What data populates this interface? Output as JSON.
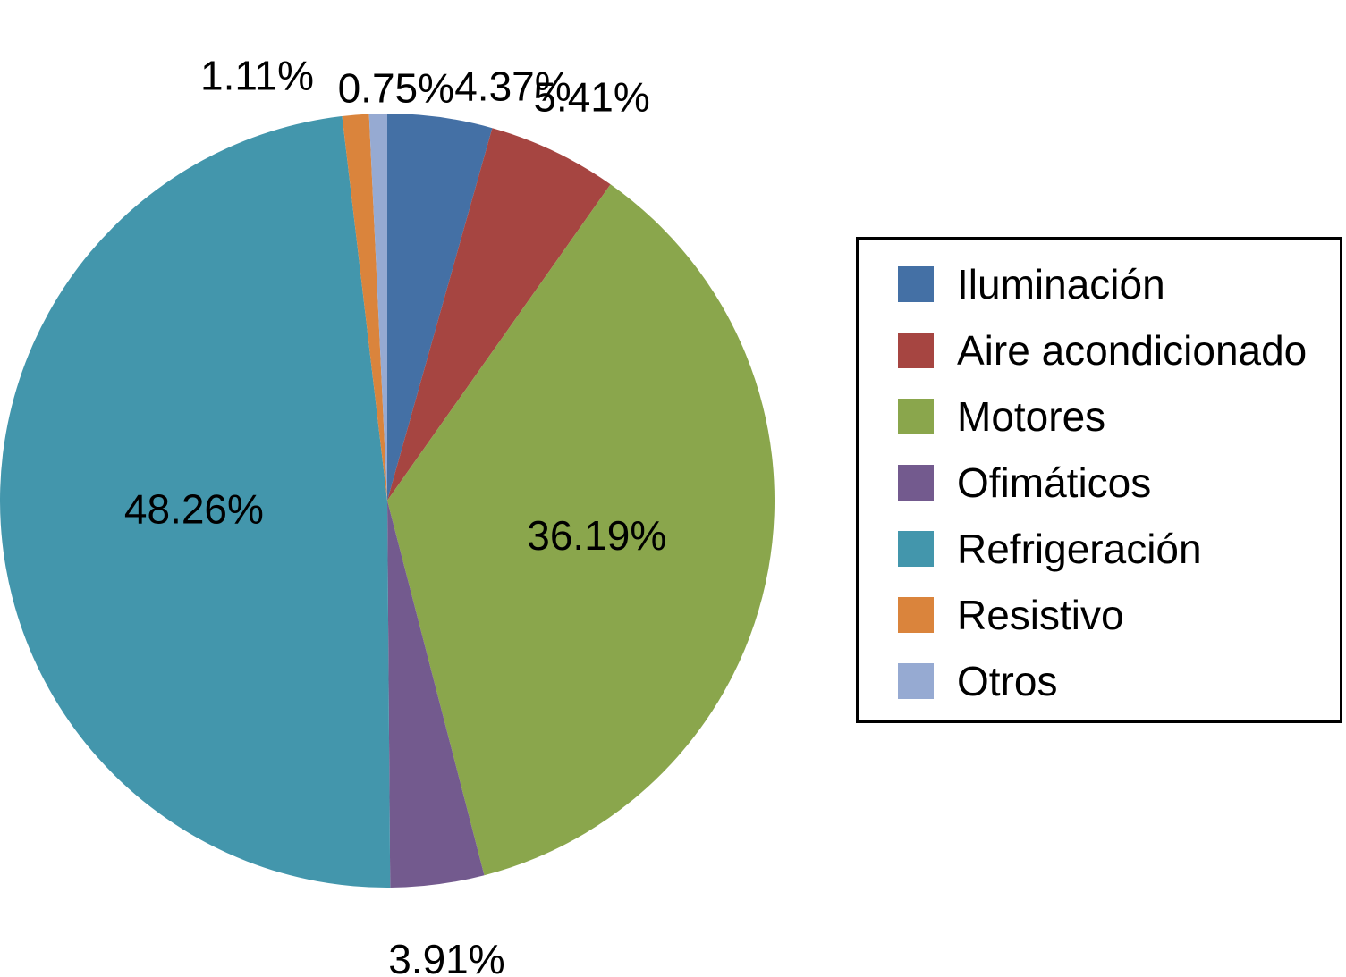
{
  "chart_data": {
    "type": "pie",
    "title": "",
    "legend_position": "right",
    "start_angle_deg": 0,
    "direction": "clockwise",
    "slices": [
      {
        "label": "Iluminación",
        "value": 4.37,
        "value_label": "4.37%",
        "color": "#4470A5"
      },
      {
        "label": "Aire acondicionado",
        "value": 5.41,
        "value_label": "5.41%",
        "color": "#A64541"
      },
      {
        "label": "Motores",
        "value": 36.19,
        "value_label": "36.19%",
        "color": "#8AA64C"
      },
      {
        "label": "Ofimáticos",
        "value": 3.91,
        "value_label": "3.91%",
        "color": "#735A8E"
      },
      {
        "label": "Refrigeración",
        "value": 48.26,
        "value_label": "48.26%",
        "color": "#4396AC"
      },
      {
        "label": "Resistivo",
        "value": 1.11,
        "value_label": "1.11%",
        "color": "#DA843C"
      },
      {
        "label": "Otros",
        "value": 0.75,
        "value_label": "0.75%",
        "color": "#96AAD2"
      }
    ]
  }
}
